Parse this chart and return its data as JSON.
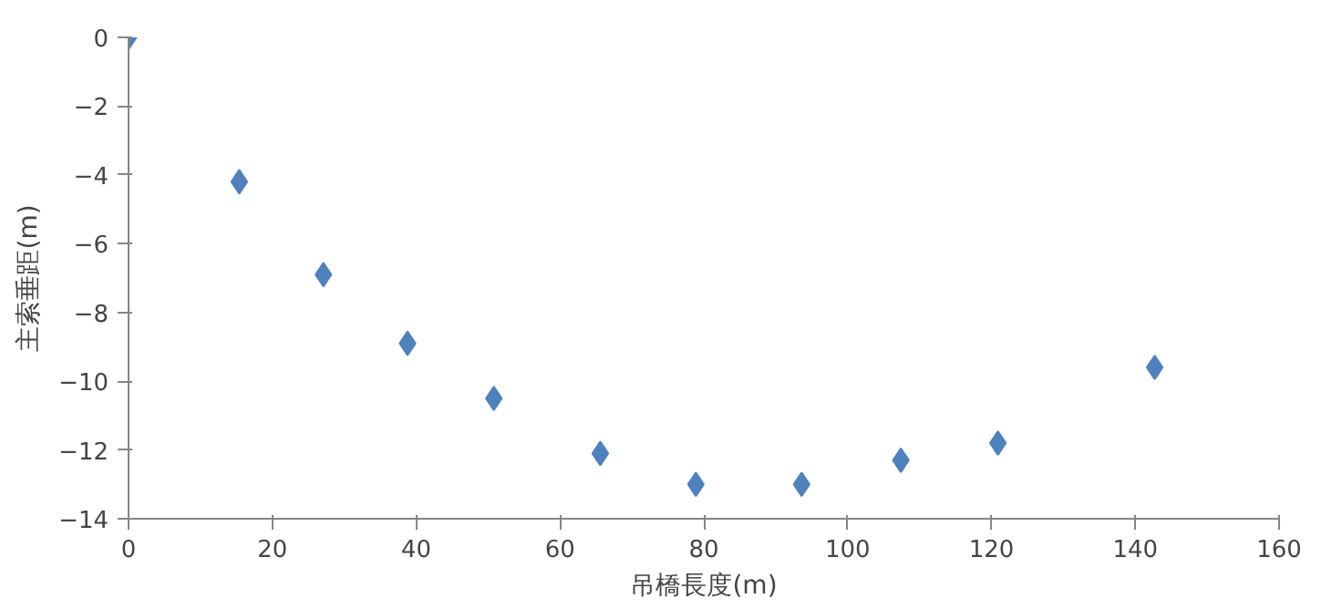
{
  "chart_data": {
    "type": "scatter",
    "xlabel": "吊橋長度(m)",
    "ylabel": "主索垂距(m)",
    "x": [
      0,
      15.4,
      27.1,
      38.8,
      50.8,
      65.6,
      78.9,
      93.6,
      107.4,
      120.9,
      142.7
    ],
    "series": [
      {
        "color": "#4f81bd",
        "values": [
          0,
          -4.2,
          -6.9,
          -8.9,
          -10.5,
          -12.1,
          -13.0,
          -13.0,
          -12.3,
          -11.8,
          -9.6
        ]
      }
    ],
    "xlim": [
      0,
      160
    ],
    "xticks": [
      0,
      20,
      40,
      60,
      80,
      100,
      120,
      140,
      160
    ],
    "ylim": [
      -14,
      0
    ],
    "yticks": [
      -14,
      -12,
      -10,
      -8,
      -6,
      -4,
      -2,
      0
    ],
    "marker": "diamond",
    "grid": false
  }
}
